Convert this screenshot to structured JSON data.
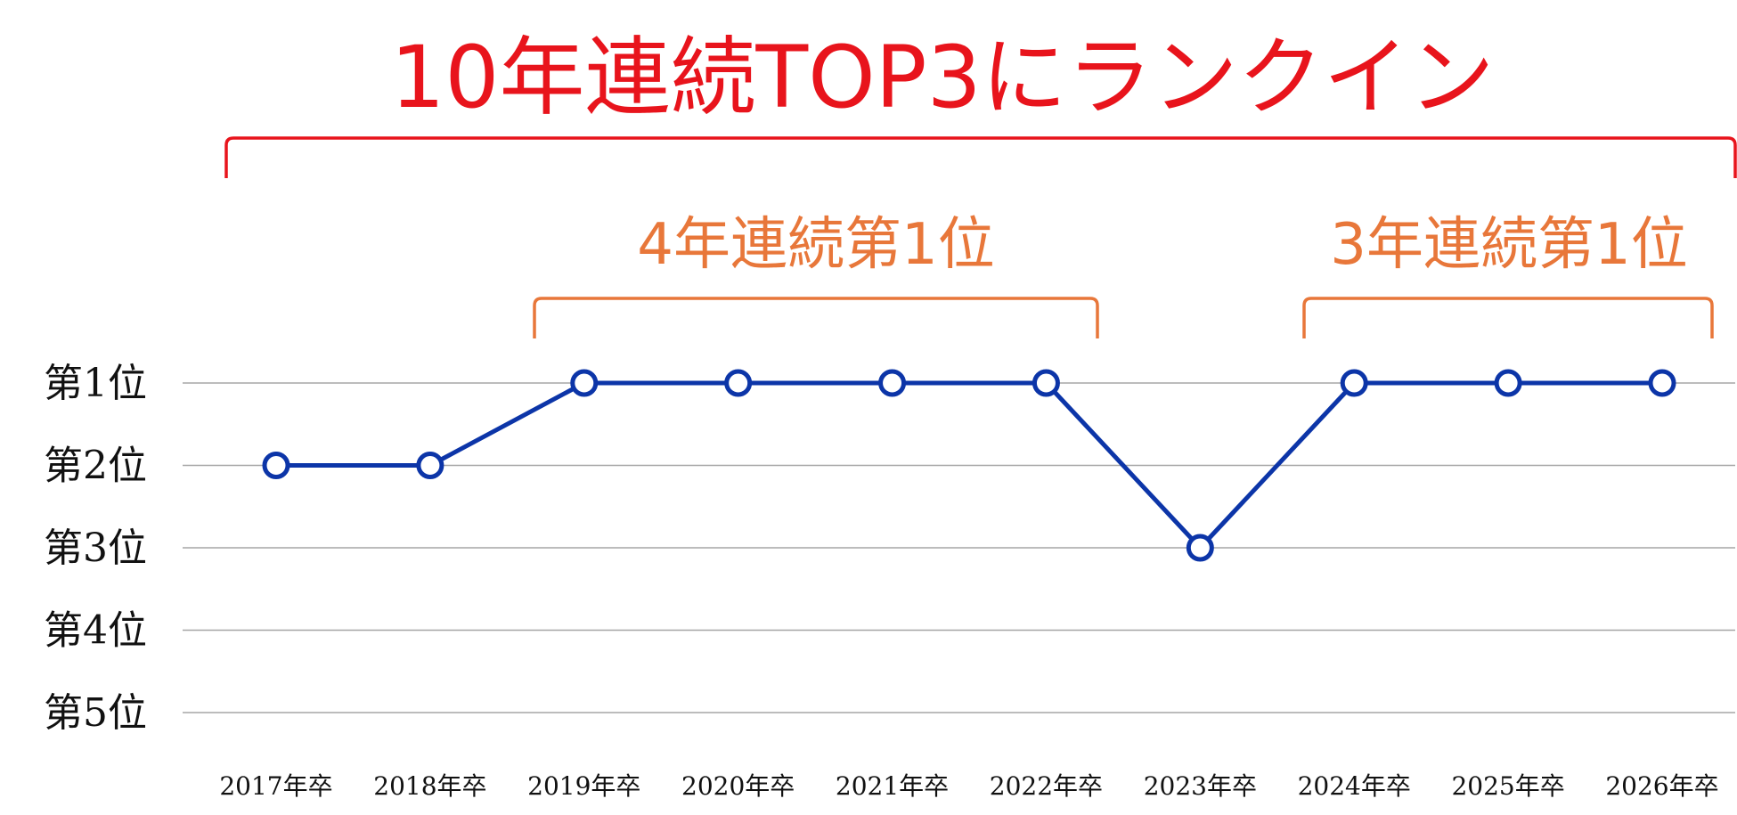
{
  "chart_data": {
    "type": "line",
    "title": "10年連続TOP3にランクイン",
    "annotations": [
      "4年連続第1位",
      "3年連続第1位"
    ],
    "categories": [
      "2017年卒",
      "2018年卒",
      "2019年卒",
      "2020年卒",
      "2021年卒",
      "2022年卒",
      "2023年卒",
      "2024年卒",
      "2025年卒",
      "2026年卒"
    ],
    "series": [
      {
        "values": [
          2,
          2,
          1,
          1,
          1,
          1,
          3,
          1,
          1,
          1
        ]
      }
    ],
    "y_tick_labels": [
      "第1位",
      "第2位",
      "第3位",
      "第4位",
      "第5位"
    ],
    "ylim": [
      1,
      5
    ],
    "y_inverted": true,
    "grid": true,
    "colors": {
      "title": "#e8141c",
      "annotation": "#e8773a",
      "line": "#0c35a8",
      "grid": "#a6a6a6"
    }
  }
}
